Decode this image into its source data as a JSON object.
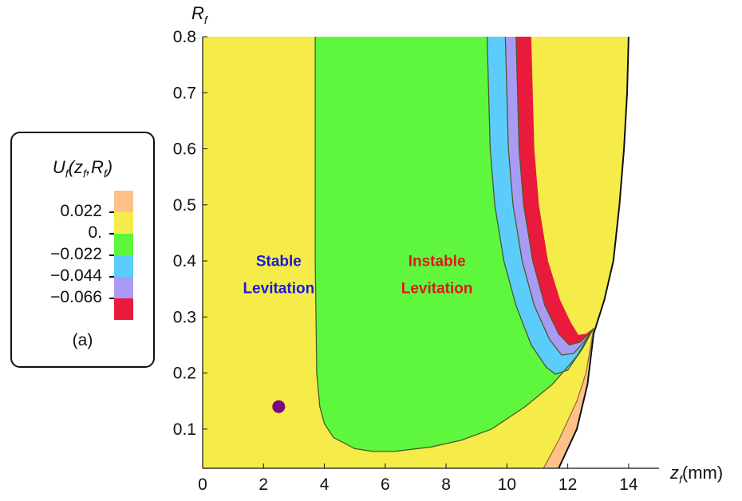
{
  "chart_data": {
    "type": "heatmap",
    "title": "",
    "xlabel": "z_f(mm)",
    "ylabel": "R_f",
    "xlim": [
      0,
      15
    ],
    "ylim": [
      0.03,
      0.8
    ],
    "x_ticks": [
      "0",
      "2",
      "4",
      "6",
      "8",
      "10",
      "12",
      "14"
    ],
    "y_ticks": [
      "0.1",
      "0.2",
      "0.3",
      "0.4",
      "0.5",
      "0.6",
      "0.7",
      "0.8"
    ],
    "legend": {
      "title": "U_f(z_f,R_f)",
      "panel": "(a)",
      "colors": [
        "#ffc187",
        "#f5ec4a",
        "#5ef73e",
        "#5ccdfb",
        "#a99bf5",
        "#ea1a3c"
      ],
      "boundaries": [
        "0.022",
        "0.",
        "−0.022",
        "−0.044",
        "−0.066"
      ]
    },
    "regions": [
      {
        "level": "> 0.022",
        "color": "#ffc187"
      },
      {
        "level": "0 to 0.022",
        "color": "#f5ec4a"
      },
      {
        "level": "-0.022 to 0",
        "color": "#5ef73e"
      },
      {
        "level": "-0.044 to -0.022",
        "color": "#5ccdfb"
      },
      {
        "level": "-0.066 to -0.044",
        "color": "#a99bf5"
      },
      {
        "level": "< -0.066",
        "color": "#ea1a3c"
      }
    ],
    "annotations": [
      {
        "lines": [
          "Stable",
          "Levitation"
        ],
        "x": 2.5,
        "y": 0.385,
        "color": "#1b1bd8"
      },
      {
        "lines": [
          "Instable",
          "Levitation"
        ],
        "x": 7.7,
        "y": 0.385,
        "color": "#e0171c"
      }
    ],
    "points": [
      {
        "x": 2.5,
        "y": 0.14,
        "color": "#7a0a80"
      }
    ],
    "zero_contour": [
      [
        3.7,
        0.8
      ],
      [
        3.7,
        0.4
      ],
      [
        3.75,
        0.2
      ],
      [
        3.85,
        0.14
      ],
      [
        4.0,
        0.11
      ],
      [
        4.3,
        0.085
      ],
      [
        5.0,
        0.065
      ],
      [
        5.6,
        0.06
      ],
      [
        6.3,
        0.06
      ],
      [
        7.5,
        0.068
      ],
      [
        8.5,
        0.08
      ],
      [
        9.5,
        0.1
      ],
      [
        10.6,
        0.14
      ],
      [
        11.5,
        0.18
      ],
      [
        12.3,
        0.23
      ],
      [
        12.85,
        0.28
      ]
    ],
    "level_m0022": [
      [
        9.35,
        0.8
      ],
      [
        9.45,
        0.6
      ],
      [
        9.6,
        0.5
      ],
      [
        9.9,
        0.4
      ],
      [
        10.3,
        0.32
      ],
      [
        10.8,
        0.25
      ],
      [
        11.3,
        0.21
      ],
      [
        11.6,
        0.198
      ],
      [
        12.0,
        0.205
      ],
      [
        12.5,
        0.245
      ],
      [
        12.85,
        0.28
      ]
    ],
    "level_m0044": [
      [
        9.95,
        0.8
      ],
      [
        10.05,
        0.6
      ],
      [
        10.2,
        0.5
      ],
      [
        10.5,
        0.4
      ],
      [
        10.9,
        0.32
      ],
      [
        11.4,
        0.26
      ],
      [
        11.8,
        0.232
      ],
      [
        12.2,
        0.235
      ],
      [
        12.6,
        0.26
      ],
      [
        12.85,
        0.28
      ]
    ],
    "level_m0066": [
      [
        10.3,
        0.8
      ],
      [
        10.4,
        0.6
      ],
      [
        10.55,
        0.5
      ],
      [
        10.85,
        0.4
      ],
      [
        11.25,
        0.32
      ],
      [
        11.7,
        0.27
      ],
      [
        12.05,
        0.25
      ],
      [
        12.4,
        0.255
      ],
      [
        12.7,
        0.27
      ],
      [
        12.85,
        0.28
      ]
    ],
    "red_edge": [
      [
        10.8,
        0.8
      ],
      [
        10.9,
        0.6
      ],
      [
        11.05,
        0.5
      ],
      [
        11.35,
        0.4
      ],
      [
        11.75,
        0.33
      ],
      [
        12.1,
        0.29
      ],
      [
        12.35,
        0.268
      ],
      [
        12.6,
        0.27
      ],
      [
        12.85,
        0.28
      ]
    ],
    "black_curve": [
      [
        11.7,
        0.03
      ],
      [
        12.3,
        0.1
      ],
      [
        12.65,
        0.18
      ],
      [
        12.85,
        0.27
      ],
      [
        13.2,
        0.33
      ],
      [
        13.5,
        0.4
      ],
      [
        13.7,
        0.5
      ],
      [
        13.85,
        0.6
      ],
      [
        13.95,
        0.7
      ],
      [
        14.0,
        0.8
      ]
    ],
    "orange_left": [
      [
        11.2,
        0.03
      ],
      [
        11.7,
        0.08
      ],
      [
        12.3,
        0.15
      ],
      [
        12.6,
        0.2
      ],
      [
        12.85,
        0.28
      ]
    ]
  }
}
